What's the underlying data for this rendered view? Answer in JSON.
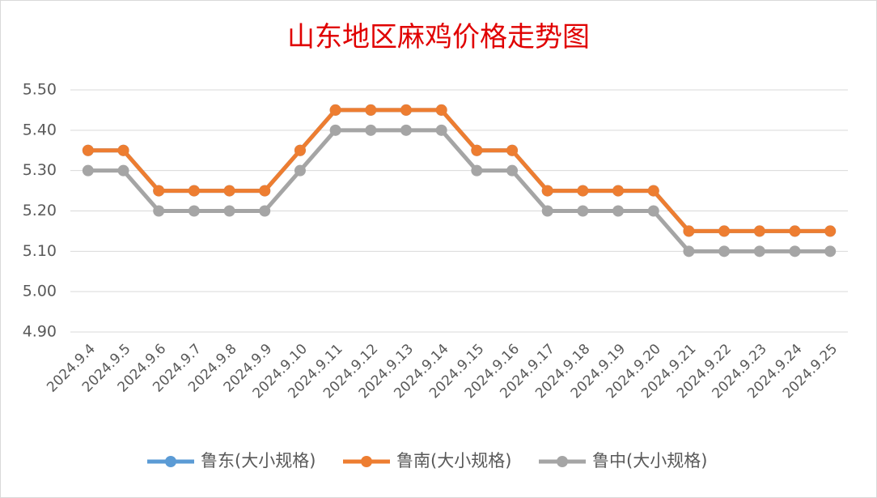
{
  "chart_data": {
    "type": "line",
    "title": "山东地区麻鸡价格走势图",
    "categories": [
      "2024.9.4",
      "2024.9.5",
      "2024.9.6",
      "2024.9.7",
      "2024.9.8",
      "2024.9.9",
      "2024.9.10",
      "2024.9.11",
      "2024.9.12",
      "2024.9.13",
      "2024.9.14",
      "2024.9.15",
      "2024.9.16",
      "2024.9.17",
      "2024.9.18",
      "2024.9.19",
      "2024.9.20",
      "2024.9.21",
      "2024.9.22",
      "2024.9.23",
      "2024.9.24",
      "2024.9.25"
    ],
    "series": [
      {
        "name": "鲁东(大小规格)",
        "color": "#5b9bd5",
        "values": [
          5.35,
          5.35,
          5.25,
          5.25,
          5.25,
          5.25,
          5.35,
          5.45,
          5.45,
          5.45,
          5.45,
          5.35,
          5.35,
          5.25,
          5.25,
          5.25,
          5.25,
          5.15,
          5.15,
          5.15,
          5.15,
          5.15
        ]
      },
      {
        "name": "鲁南(大小规格)",
        "color": "#ed7d31",
        "values": [
          5.35,
          5.35,
          5.25,
          5.25,
          5.25,
          5.25,
          5.35,
          5.45,
          5.45,
          5.45,
          5.45,
          5.35,
          5.35,
          5.25,
          5.25,
          5.25,
          5.25,
          5.15,
          5.15,
          5.15,
          5.15,
          5.15
        ]
      },
      {
        "name": "鲁中(大小规格)",
        "color": "#a5a5a5",
        "values": [
          5.3,
          5.3,
          5.2,
          5.2,
          5.2,
          5.2,
          5.3,
          5.4,
          5.4,
          5.4,
          5.4,
          5.3,
          5.3,
          5.2,
          5.2,
          5.2,
          5.2,
          5.1,
          5.1,
          5.1,
          5.1,
          5.1
        ]
      }
    ],
    "ylim": [
      4.9,
      5.5
    ],
    "yticks": [
      {
        "value": 4.9,
        "label": "4.90"
      },
      {
        "value": 5.0,
        "label": "5.00"
      },
      {
        "value": 5.1,
        "label": "5.10"
      },
      {
        "value": 5.2,
        "label": "5.20"
      },
      {
        "value": 5.3,
        "label": "5.30"
      },
      {
        "value": 5.4,
        "label": "5.40"
      },
      {
        "value": 5.5,
        "label": "5.50"
      }
    ],
    "grid": true,
    "legend": "bottom"
  }
}
